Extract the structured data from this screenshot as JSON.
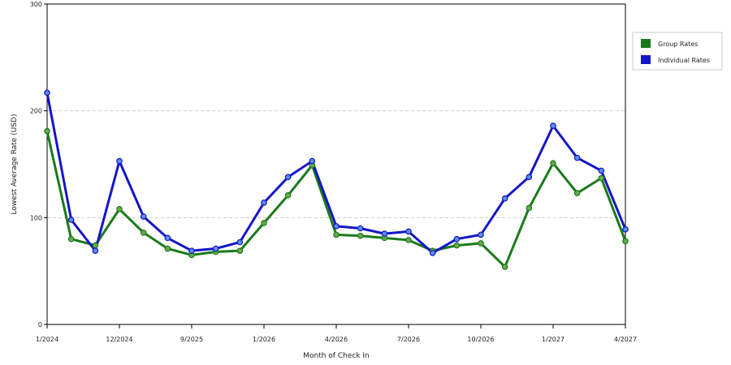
{
  "chart_data": {
    "type": "line",
    "xlabel": "Month of Check In",
    "ylabel": "Lowest Average Rate (USD)",
    "ylim": [
      0,
      300
    ],
    "yticks": [
      "0",
      "100",
      "200",
      "300"
    ],
    "yticks_values": [
      0,
      100,
      200,
      300
    ],
    "grid": "horizontal dashed at 100 and 200",
    "legend_placement": "right",
    "xtick_labels": [
      {
        "index": 0,
        "label": "1/2024"
      },
      {
        "index": 3,
        "label": "12/2024"
      },
      {
        "index": 6,
        "label": "9/2025"
      },
      {
        "index": 9,
        "label": "1/2026"
      },
      {
        "index": 12,
        "label": "4/2026"
      },
      {
        "index": 15,
        "label": "7/2026"
      },
      {
        "index": 18,
        "label": "10/2026"
      },
      {
        "index": 21,
        "label": "1/2027"
      },
      {
        "index": 24,
        "label": "4/2027"
      }
    ],
    "point_count": 25,
    "series": [
      {
        "name": "Group Rates",
        "color": "#1a7a1a",
        "values": [
          181,
          80,
          74,
          108,
          86,
          71,
          65,
          68,
          69,
          95,
          121,
          149,
          84,
          83,
          81,
          79,
          69,
          74,
          76,
          54,
          109,
          151,
          123,
          137,
          78
        ]
      },
      {
        "name": "Individual Rates",
        "color": "#1515c8",
        "values": [
          217,
          98,
          69,
          153,
          101,
          81,
          69,
          71,
          77,
          114,
          138,
          153,
          92,
          90,
          85,
          87,
          67,
          80,
          84,
          118,
          138,
          186,
          156,
          144,
          89
        ]
      }
    ]
  },
  "colors": {
    "group_legend_swatch": "#1a7a1a",
    "individual_legend_swatch": "#1515c8",
    "grid": "#cccccc",
    "axis": "#000000"
  }
}
